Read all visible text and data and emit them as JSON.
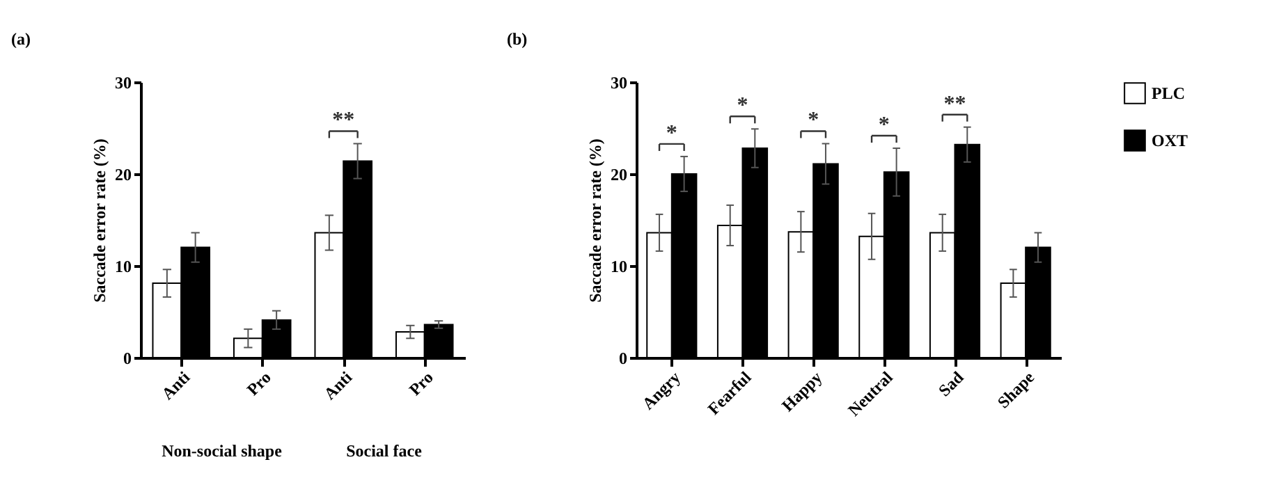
{
  "chart_data": [
    {
      "type": "bar",
      "title": "(a)",
      "ylabel": "Saccade error rate (%)",
      "categories": [
        "Anti",
        "Pro",
        "Anti",
        "Pro"
      ],
      "series": [
        {
          "color": "#ffffff",
          "values": [
            8.1,
            2.1,
            13.6,
            2.8
          ],
          "errors": [
            1.5,
            1.0,
            1.9,
            0.7
          ]
        },
        {
          "color": "#000000",
          "values": [
            12.0,
            4.1,
            21.4,
            3.6
          ],
          "errors": [
            1.6,
            1.0,
            1.9,
            0.4
          ]
        }
      ],
      "ylim": [
        0,
        30
      ],
      "yticks": [
        0,
        10,
        20,
        30
      ],
      "annotations": [
        "Non-social shape",
        "Social face",
        "**"
      ]
    },
    {
      "type": "bar",
      "title": "(b)",
      "ylabel": "Saccade error rate (%)",
      "categories": [
        "Angry",
        "Fearful",
        "Happy",
        "Neutral",
        "Sad",
        "Shape"
      ],
      "series": [
        {
          "name": "PLC",
          "color": "#ffffff",
          "values": [
            13.6,
            14.4,
            13.7,
            13.2,
            13.6,
            8.1
          ],
          "errors": [
            2.0,
            2.2,
            2.2,
            2.5,
            2.0,
            1.5
          ]
        },
        {
          "name": "OXT",
          "color": "#000000",
          "values": [
            20.0,
            22.8,
            21.1,
            20.2,
            23.2,
            12.0
          ],
          "errors": [
            1.9,
            2.1,
            2.2,
            2.6,
            1.9,
            1.6
          ]
        }
      ],
      "ylim": [
        0,
        30
      ],
      "yticks": [
        0,
        10,
        20,
        30
      ],
      "legend": "top right",
      "annotations": [
        "*",
        "*",
        "*",
        "*",
        "**"
      ]
    }
  ]
}
